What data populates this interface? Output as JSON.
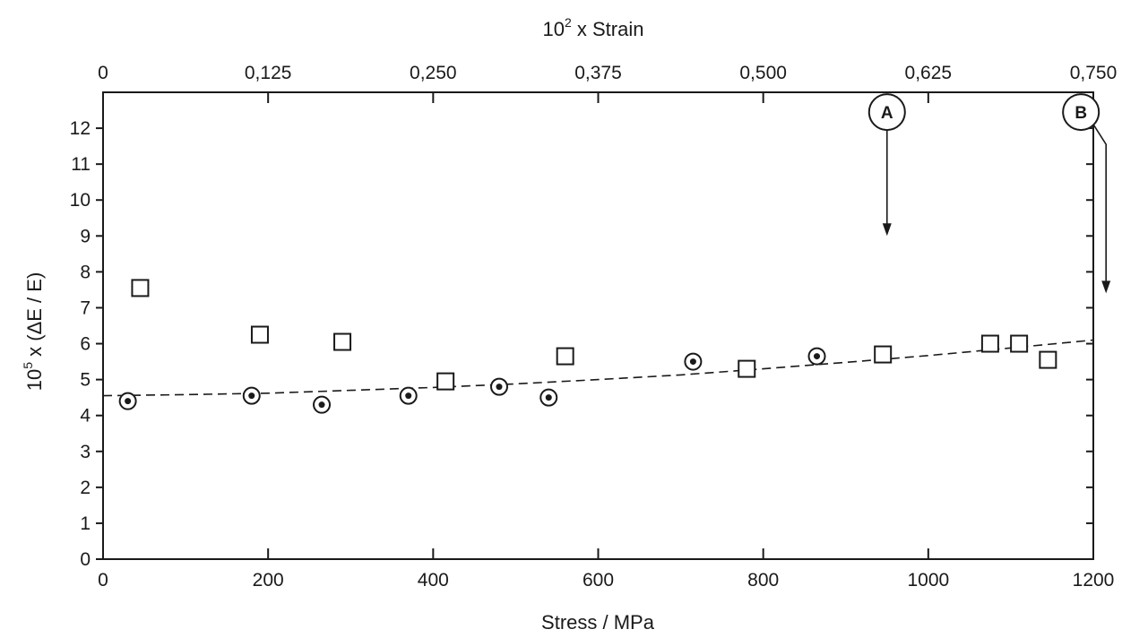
{
  "chart_data": {
    "type": "scatter",
    "title": "",
    "xlabel": "Stress / MPa",
    "ylabel_prefix": "10",
    "ylabel_exp": "5",
    "ylabel_rest": " x (ΔE / E)",
    "xlabel_top_prefix": "10",
    "xlabel_top_exp": "2",
    "xlabel_top_rest": " x Strain",
    "xlim": [
      0,
      1200
    ],
    "ylim": [
      0,
      13
    ],
    "x_ticks": [
      0,
      200,
      400,
      600,
      800,
      1000,
      1200
    ],
    "y_ticks": [
      0,
      1,
      2,
      3,
      4,
      5,
      6,
      7,
      8,
      9,
      10,
      11,
      12
    ],
    "x_top_ticks": [
      {
        "label": "0",
        "value": 0
      },
      {
        "label": "0,125",
        "value": 0.125
      },
      {
        "label": "0,250",
        "value": 0.25
      },
      {
        "label": "0,375",
        "value": 0.375
      },
      {
        "label": "0,500",
        "value": 0.5
      },
      {
        "label": "0,625",
        "value": 0.625
      },
      {
        "label": "0,750",
        "value": 0.75
      }
    ],
    "top_axis_max": 0.75,
    "grid": false,
    "series": [
      {
        "marker": "square",
        "points": [
          [
            45,
            7.55
          ],
          [
            190,
            6.25
          ],
          [
            290,
            6.05
          ],
          [
            415,
            4.95
          ],
          [
            560,
            5.65
          ],
          [
            780,
            5.3
          ],
          [
            945,
            5.7
          ],
          [
            1075,
            6.0
          ],
          [
            1110,
            6.0
          ],
          [
            1145,
            5.55
          ]
        ]
      },
      {
        "marker": "circle-dot",
        "points": [
          [
            30,
            4.4
          ],
          [
            180,
            4.55
          ],
          [
            265,
            4.3
          ],
          [
            370,
            4.55
          ],
          [
            480,
            4.8
          ],
          [
            540,
            4.5
          ],
          [
            715,
            5.5
          ],
          [
            865,
            5.65
          ]
        ]
      }
    ],
    "fit_curve": {
      "style": "dashed",
      "points": [
        [
          0,
          4.55
        ],
        [
          100,
          4.58
        ],
        [
          200,
          4.62
        ],
        [
          300,
          4.7
        ],
        [
          400,
          4.78
        ],
        [
          500,
          4.88
        ],
        [
          600,
          5.0
        ],
        [
          700,
          5.13
        ],
        [
          800,
          5.3
        ],
        [
          900,
          5.48
        ],
        [
          1000,
          5.67
        ],
        [
          1100,
          5.88
        ],
        [
          1200,
          6.1
        ]
      ]
    },
    "annotations": [
      {
        "label": "A",
        "x": 950,
        "y_from": 11.9,
        "y_to": 9.0,
        "style": "straight"
      },
      {
        "label": "B",
        "x": 1185,
        "y_from": 11.9,
        "y_to": 7.4,
        "style": "bent"
      }
    ]
  }
}
